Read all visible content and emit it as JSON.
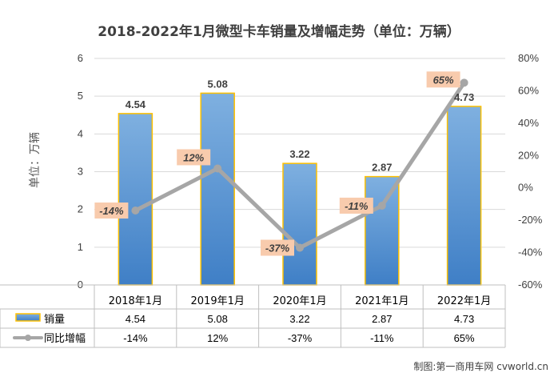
{
  "chart_data": {
    "type": "bar",
    "title": "2018-2022年1月微型卡车销量及增幅走势（单位：万辆）",
    "ylabel": "单位：万辆",
    "categories": [
      "2018年1月",
      "2019年1月",
      "2020年1月",
      "2021年1月",
      "2022年1月"
    ],
    "ylim": [
      0,
      6
    ],
    "y2lim": [
      -60,
      80
    ],
    "yticks": [
      "0",
      "1",
      "2",
      "3",
      "4",
      "5",
      "6"
    ],
    "y2ticks": [
      "-60%",
      "-40%",
      "-20%",
      "0%",
      "20%",
      "40%",
      "60%",
      "80%"
    ],
    "series": [
      {
        "name": "销量",
        "type": "bar",
        "axis": "left",
        "values": [
          4.54,
          5.08,
          3.22,
          2.87,
          4.73
        ],
        "labels": [
          "4.54",
          "5.08",
          "3.22",
          "2.87",
          "4.73"
        ],
        "color": "#5b9bd5"
      },
      {
        "name": "同比增幅",
        "type": "line",
        "axis": "right",
        "values": [
          -14,
          12,
          -37,
          -11,
          65
        ],
        "labels": [
          "-14%",
          "12%",
          "-37%",
          "-11%",
          "65%"
        ],
        "color": "#a6a6a6"
      }
    ],
    "grid": true,
    "legend": "bottom-table",
    "label_box_color": "#f8cbad",
    "bar_border_color": "#ffc000"
  },
  "credit": "制图:第一商用车网 cvworld.cn"
}
